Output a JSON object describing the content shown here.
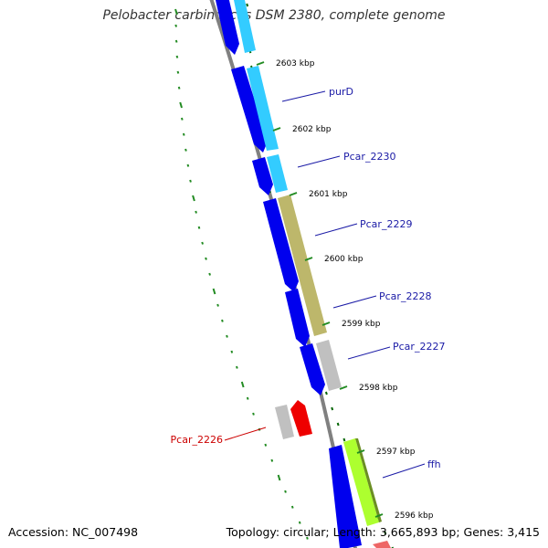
{
  "title": "Pelobacter carbinolicus DSM 2380, complete genome",
  "footer": {
    "accession": "Accession: NC_007498",
    "topology": "Topology: circular; Length: 3,665,893 bp; Genes: 3,415"
  },
  "ruler": [
    {
      "label": "2603 kbp"
    },
    {
      "label": "2602 kbp"
    },
    {
      "label": "2601 kbp"
    },
    {
      "label": "2600 kbp"
    },
    {
      "label": "2599 kbp"
    },
    {
      "label": "2598 kbp"
    },
    {
      "label": "2597 kbp"
    },
    {
      "label": "2596 kbp"
    }
  ],
  "gene_labels": [
    {
      "name": "purD",
      "color": "#1a1aa6"
    },
    {
      "name": "Pcar_2230",
      "color": "#1a1aa6"
    },
    {
      "name": "Pcar_2229",
      "color": "#1a1aa6"
    },
    {
      "name": "Pcar_2228",
      "color": "#1a1aa6"
    },
    {
      "name": "Pcar_2227",
      "color": "#1a1aa6"
    },
    {
      "name": "ffh",
      "color": "#1a1aa6"
    },
    {
      "name": "Pcar_2226",
      "color": "#cc0000"
    }
  ],
  "colors": {
    "cds": "#0000ee",
    "gene_light_blue": "#33ccff",
    "gene_khaki": "#bdb76b",
    "gene_grey": "#c0c0c0",
    "gene_green": "#adff2f",
    "gene_red": "#ee0000",
    "backbone": "#808080",
    "gc_ticks": "#228b22",
    "tick_marks": "#006400"
  }
}
